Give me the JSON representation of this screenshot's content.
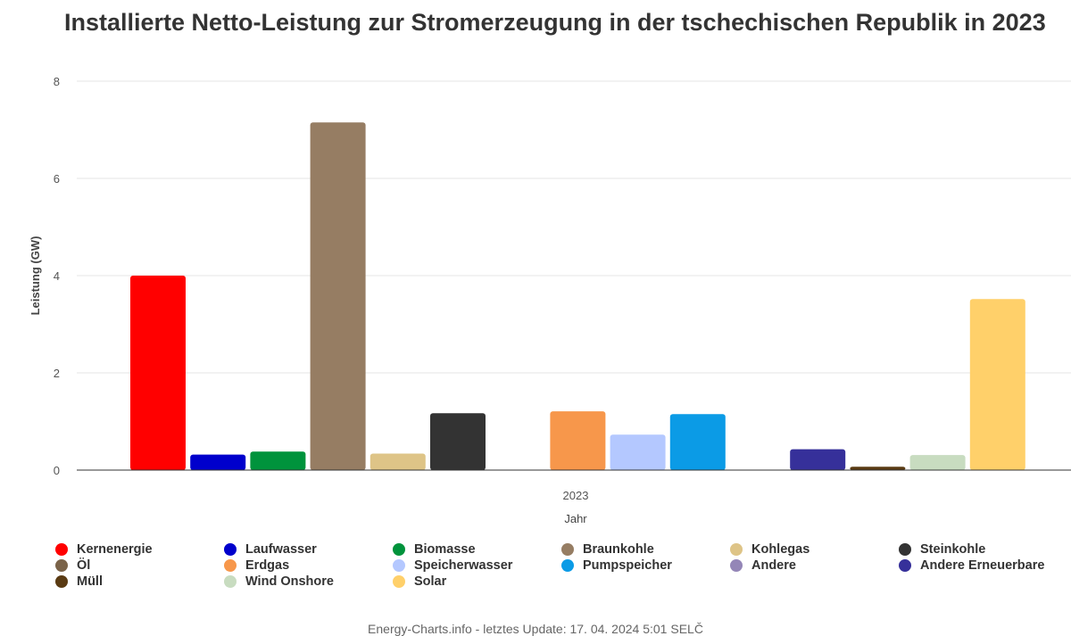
{
  "title": "Installierte Netto-Leistung zur Stromerzeugung in der tschechischen Republik in 2023",
  "footer": "Energy-Charts.info - letztes Update: 17. 04. 2024 5:01 SELČ",
  "chart_data": {
    "type": "bar",
    "categories": [
      "2023"
    ],
    "xlabel": "Jahr",
    "ylabel": "Leistung (GW)",
    "ylim": [
      0,
      8
    ],
    "yticks": [
      "0",
      "2",
      "4",
      "6",
      "8"
    ],
    "grid": true,
    "legend_position": "bottom",
    "series": [
      {
        "name": "Kernenergie",
        "color": "#ff0000",
        "value": 4.0
      },
      {
        "name": "Laufwasser",
        "color": "#0000cc",
        "value": 0.32
      },
      {
        "name": "Biomasse",
        "color": "#00933c",
        "value": 0.38
      },
      {
        "name": "Braunkohle",
        "color": "#967d63",
        "value": 7.15
      },
      {
        "name": "Kohlegas",
        "color": "#dec487",
        "value": 0.34
      },
      {
        "name": "Steinkohle",
        "color": "#333333",
        "value": 1.17
      },
      {
        "name": "Öl",
        "color": "#7a6349",
        "value": 0
      },
      {
        "name": "Erdgas",
        "color": "#f7974b",
        "value": 1.21
      },
      {
        "name": "Speicherwasser",
        "color": "#b4c8ff",
        "value": 0.73
      },
      {
        "name": "Pumpspeicher",
        "color": "#0b9be6",
        "value": 1.15
      },
      {
        "name": "Andere",
        "color": "#9486b7",
        "value": 0
      },
      {
        "name": "Andere Erneuerbare",
        "color": "#36309a",
        "value": 0.43
      },
      {
        "name": "Müll",
        "color": "#5a3b13",
        "value": 0.07
      },
      {
        "name": "Wind Onshore",
        "color": "#c8dcc0",
        "value": 0.31
      },
      {
        "name": "Solar",
        "color": "#ffd06a",
        "value": 3.52
      }
    ]
  }
}
